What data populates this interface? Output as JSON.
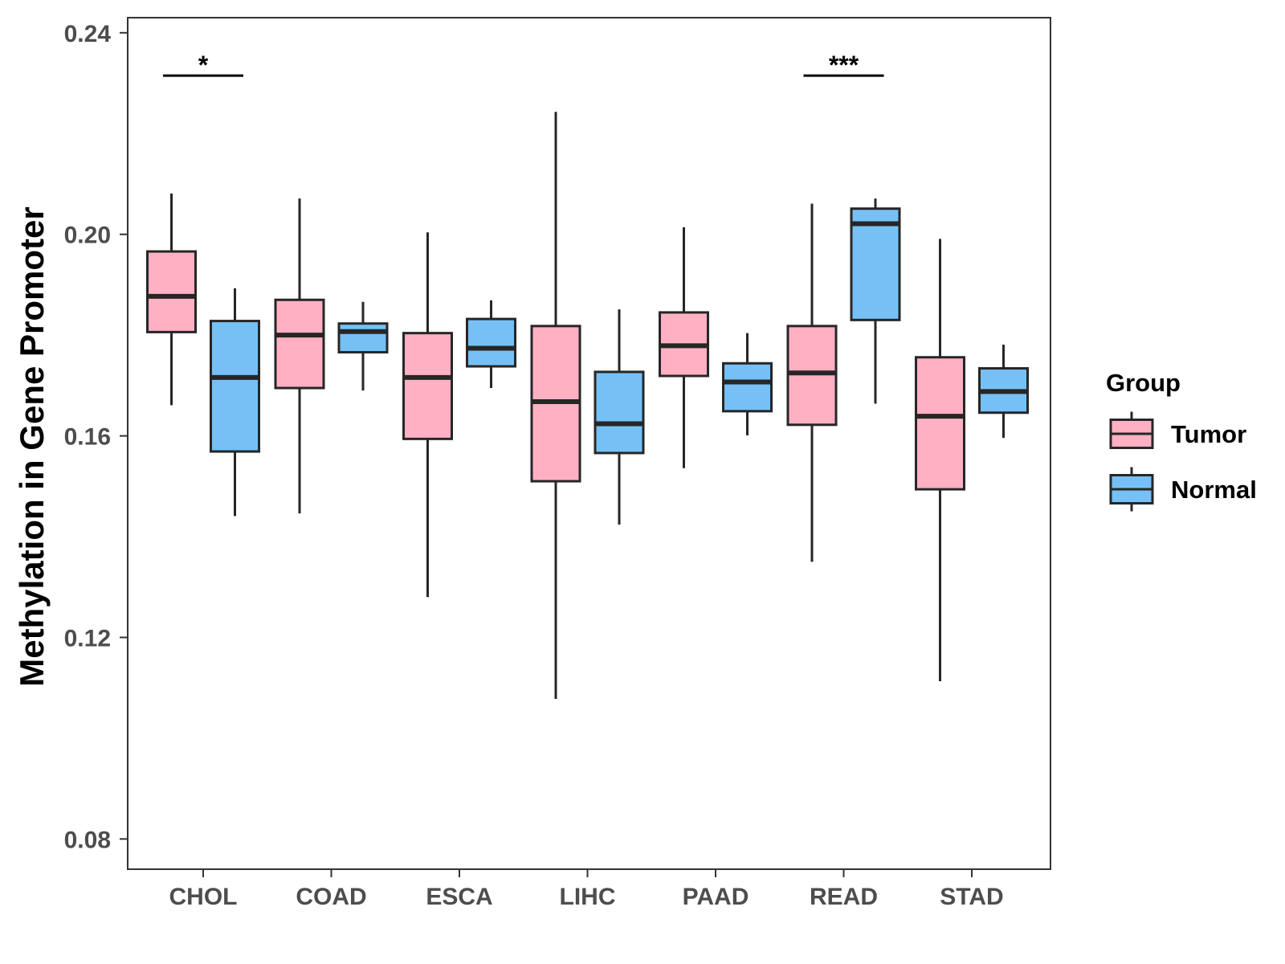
{
  "chart_data": {
    "type": "boxplot",
    "title": "",
    "xlabel": "",
    "ylabel": "Methylation in Gene Promoter",
    "ylim": [
      0.074,
      0.243
    ],
    "yticks": [
      0.08,
      0.12,
      0.16,
      0.2,
      0.24
    ],
    "ytick_labels": [
      "0.08",
      "0.12",
      "0.16",
      "0.20",
      "0.24"
    ],
    "categories": [
      "CHOL",
      "COAD",
      "ESCA",
      "LIHC",
      "PAAD",
      "READ",
      "STAD"
    ],
    "legend": {
      "title": "Group",
      "position": "right",
      "entries": [
        {
          "name": "Tumor",
          "color": "#ffb1c3"
        },
        {
          "name": "Normal",
          "color": "#76c0f6"
        }
      ]
    },
    "series": [
      {
        "name": "Tumor",
        "color": "#ffb1c3",
        "boxes": [
          {
            "category": "CHOL",
            "whisker_low": 0.1661,
            "q1": 0.1806,
            "median": 0.1877,
            "q3": 0.1966,
            "whisker_high": 0.2081
          },
          {
            "category": "COAD",
            "whisker_low": 0.1446,
            "q1": 0.1695,
            "median": 0.18,
            "q3": 0.187,
            "whisker_high": 0.2071
          },
          {
            "category": "ESCA",
            "whisker_low": 0.128,
            "q1": 0.1594,
            "median": 0.1716,
            "q3": 0.1804,
            "whisker_high": 0.2004
          },
          {
            "category": "LIHC",
            "whisker_low": 0.1078,
            "q1": 0.151,
            "median": 0.1668,
            "q3": 0.1818,
            "whisker_high": 0.2243
          },
          {
            "category": "PAAD",
            "whisker_low": 0.1536,
            "q1": 0.1719,
            "median": 0.1779,
            "q3": 0.1845,
            "whisker_high": 0.2014
          },
          {
            "category": "READ",
            "whisker_low": 0.135,
            "q1": 0.1622,
            "median": 0.1725,
            "q3": 0.1818,
            "whisker_high": 0.2061
          },
          {
            "category": "STAD",
            "whisker_low": 0.1113,
            "q1": 0.1494,
            "median": 0.1639,
            "q3": 0.1756,
            "whisker_high": 0.1991
          }
        ]
      },
      {
        "name": "Normal",
        "color": "#76c0f6",
        "boxes": [
          {
            "category": "CHOL",
            "whisker_low": 0.1441,
            "q1": 0.1569,
            "median": 0.1716,
            "q3": 0.1828,
            "whisker_high": 0.1893
          },
          {
            "category": "COAD",
            "whisker_low": 0.169,
            "q1": 0.1766,
            "median": 0.1807,
            "q3": 0.1823,
            "whisker_high": 0.1866
          },
          {
            "category": "ESCA",
            "whisker_low": 0.1695,
            "q1": 0.1738,
            "median": 0.1774,
            "q3": 0.1832,
            "whisker_high": 0.1869
          },
          {
            "category": "LIHC",
            "whisker_low": 0.1424,
            "q1": 0.1566,
            "median": 0.1624,
            "q3": 0.1727,
            "whisker_high": 0.1851
          },
          {
            "category": "PAAD",
            "whisker_low": 0.1601,
            "q1": 0.1649,
            "median": 0.1707,
            "q3": 0.1744,
            "whisker_high": 0.1804
          },
          {
            "category": "READ",
            "whisker_low": 0.1664,
            "q1": 0.183,
            "median": 0.2021,
            "q3": 0.2051,
            "whisker_high": 0.2071
          },
          {
            "category": "STAD",
            "whisker_low": 0.1596,
            "q1": 0.1646,
            "median": 0.1688,
            "q3": 0.1734,
            "whisker_high": 0.1781
          }
        ]
      }
    ],
    "annotations": [
      {
        "category": "CHOL",
        "label": "*",
        "y": 0.2315
      },
      {
        "category": "READ",
        "label": "***",
        "y": 0.2315
      }
    ],
    "colors": {
      "tumor": "#ffb1c3",
      "normal": "#76c0f6",
      "outline": "#262626",
      "tick_text": "#4d4d4d"
    }
  }
}
